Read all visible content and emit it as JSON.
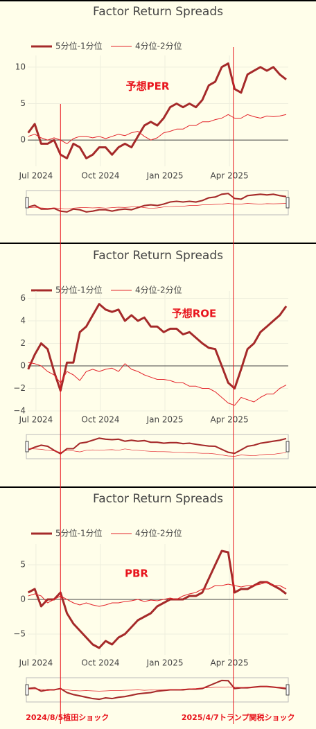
{
  "chart_data": [
    {
      "type": "line",
      "title": "Factor Return Spreads",
      "annotation": "予想PER",
      "x": [
        2024.47,
        2024.495,
        2024.52,
        2024.545,
        2024.57,
        2024.595,
        2024.62,
        2024.645,
        2024.67,
        2024.695,
        2024.72,
        2024.745,
        2024.77,
        2024.795,
        2024.82,
        2024.845,
        2024.87,
        2024.895,
        2024.92,
        2024.945,
        2024.97,
        2024.995,
        2025.02,
        2025.045,
        2025.07,
        2025.095,
        2025.12,
        2025.145,
        2025.17,
        2025.195,
        2025.22,
        2025.245,
        2025.27,
        2025.295,
        2025.32,
        2025.345,
        2025.37,
        2025.395,
        2025.42,
        2025.445,
        2025.47
      ],
      "series": [
        {
          "name": "5分位-1分位",
          "color": "#a52a2a",
          "values": [
            1,
            2.2,
            -0.5,
            -0.5,
            0,
            -2,
            -2.5,
            -0.5,
            -1,
            -2.5,
            -2,
            -1,
            -1,
            -2,
            -1,
            -0.5,
            -1,
            0.5,
            2,
            2.5,
            2,
            3,
            4.5,
            5,
            4.5,
            5,
            4.5,
            5.5,
            7.5,
            8,
            10,
            10.5,
            7,
            6.5,
            9,
            9.5,
            10,
            9.5,
            10,
            9,
            8.3
          ]
        },
        {
          "name": "4分位-2分位",
          "color": "#e3242b",
          "values": [
            0.5,
            0.8,
            0.3,
            0,
            0.3,
            0,
            -0.5,
            0.2,
            0.5,
            0.5,
            0.3,
            0.5,
            0.2,
            0.5,
            0.8,
            0.6,
            1,
            1.2,
            0.5,
            0,
            0.3,
            1,
            1.2,
            1.5,
            1.5,
            2,
            2,
            2.5,
            2.5,
            2.8,
            3,
            3.5,
            3,
            3,
            3.5,
            3.2,
            3,
            3.3,
            3.2,
            3.3,
            3.5
          ]
        }
      ],
      "xlim": [
        2024.468,
        2025.478
      ],
      "xticks": [
        {
          "value": 2024.5,
          "label": "Jul 2024"
        },
        {
          "value": 2024.75,
          "label": "Oct 2024"
        },
        {
          "value": 2025.0,
          "label": "Jan 2025"
        },
        {
          "value": 2025.25,
          "label": "Apr 2025"
        }
      ],
      "ylim": [
        -3.6,
        11.6
      ],
      "yticks": [
        0,
        5,
        10
      ],
      "grid": true
    },
    {
      "type": "line",
      "title": "Factor Return Spreads",
      "annotation": "予想ROE",
      "x": [
        2024.47,
        2024.495,
        2024.52,
        2024.545,
        2024.57,
        2024.595,
        2024.62,
        2024.645,
        2024.67,
        2024.695,
        2024.72,
        2024.745,
        2024.77,
        2024.795,
        2024.82,
        2024.845,
        2024.87,
        2024.895,
        2024.92,
        2024.945,
        2024.97,
        2024.995,
        2025.02,
        2025.045,
        2025.07,
        2025.095,
        2025.12,
        2025.145,
        2025.17,
        2025.195,
        2025.22,
        2025.245,
        2025.27,
        2025.295,
        2025.32,
        2025.345,
        2025.37,
        2025.395,
        2025.42,
        2025.445,
        2025.47
      ],
      "series": [
        {
          "name": "5分位-1分位",
          "color": "#a52a2a",
          "values": [
            -0.3,
            1,
            2,
            1.5,
            -0.5,
            -2.2,
            0.3,
            0.3,
            3,
            3.5,
            4.5,
            5.5,
            5,
            4.8,
            5,
            4,
            4.5,
            4,
            4.3,
            3.5,
            3.5,
            3,
            3.3,
            3.3,
            2.8,
            3,
            2.5,
            2,
            1.6,
            1.5,
            0,
            -1.5,
            -2,
            -0.3,
            1.5,
            2,
            3,
            3.5,
            4,
            4.5,
            5.3
          ]
        },
        {
          "name": "4分位-2分位",
          "color": "#e3242b",
          "values": [
            0.3,
            0.2,
            0,
            -0.5,
            -0.8,
            -1.5,
            -0.5,
            -0.8,
            -1.3,
            -0.5,
            -0.3,
            -0.5,
            -0.3,
            -0.2,
            -0.5,
            0.2,
            -0.3,
            -0.5,
            -0.8,
            -1,
            -1.2,
            -1.2,
            -1.3,
            -1.5,
            -1.5,
            -1.8,
            -1.8,
            -2,
            -2,
            -2.3,
            -2.8,
            -3.3,
            -3.5,
            -2.8,
            -3,
            -3.2,
            -2.8,
            -2.5,
            -2.5,
            -2,
            -1.7
          ]
        }
      ],
      "xlim": [
        2024.468,
        2025.478
      ],
      "xticks": [
        {
          "value": 2024.5,
          "label": "Jul 2024"
        },
        {
          "value": 2024.75,
          "label": "Oct 2024"
        },
        {
          "value": 2025.0,
          "label": "Jan 2025"
        },
        {
          "value": 2025.25,
          "label": "Apr 2025"
        }
      ],
      "ylim": [
        -4,
        6.65
      ],
      "yticks": [
        {
          "value": -4,
          "label": "−4"
        },
        {
          "value": -2,
          "label": "−2"
        },
        0,
        2,
        4,
        6
      ],
      "grid": true
    },
    {
      "type": "line",
      "title": "Factor Return Spreads",
      "annotation": "PBR",
      "x": [
        2024.47,
        2024.495,
        2024.52,
        2024.545,
        2024.57,
        2024.595,
        2024.62,
        2024.645,
        2024.67,
        2024.695,
        2024.72,
        2024.745,
        2024.77,
        2024.795,
        2024.82,
        2024.845,
        2024.87,
        2024.895,
        2024.92,
        2024.945,
        2024.97,
        2024.995,
        2025.02,
        2025.045,
        2025.07,
        2025.095,
        2025.12,
        2025.145,
        2025.17,
        2025.195,
        2025.22,
        2025.245,
        2025.27,
        2025.295,
        2025.32,
        2025.345,
        2025.37,
        2025.395,
        2025.42,
        2025.445,
        2025.47
      ],
      "series": [
        {
          "name": "5分位-1分位",
          "color": "#a52a2a",
          "values": [
            1,
            1.5,
            -1,
            0,
            0,
            1,
            -2,
            -3.5,
            -4.5,
            -5.5,
            -6.5,
            -7,
            -6,
            -6.5,
            -5.5,
            -5,
            -4,
            -3,
            -2.5,
            -2,
            -1,
            -0.5,
            0,
            0,
            0,
            0.5,
            0.5,
            1,
            3,
            5,
            7,
            6.8,
            1,
            1.5,
            1.5,
            2,
            2.5,
            2.5,
            2,
            1.5,
            0.8
          ]
        },
        {
          "name": "4分位-2分位",
          "color": "#e3242b",
          "values": [
            0.5,
            0.8,
            0.5,
            -0.5,
            0,
            0.5,
            0,
            -0.5,
            -0.8,
            -0.5,
            -0.8,
            -1,
            -0.8,
            -0.5,
            -0.5,
            -0.3,
            -0.2,
            0,
            -0.3,
            -0.1,
            -0.2,
            0,
            0.2,
            0,
            0.5,
            0.8,
            1,
            1.5,
            1.5,
            2,
            2,
            2.2,
            2,
            1.8,
            2,
            2,
            2.2,
            2.5,
            2,
            2,
            1.5
          ]
        }
      ],
      "xlim": [
        2024.468,
        2025.478
      ],
      "xticks": [
        {
          "value": 2024.5,
          "label": "Jul 2024"
        },
        {
          "value": 2024.75,
          "label": "Oct 2024"
        },
        {
          "value": 2025.0,
          "label": "Jan 2025"
        },
        {
          "value": 2025.25,
          "label": "Apr 2025"
        }
      ],
      "ylim": [
        -8,
        8
      ],
      "yticks": [
        {
          "value": -5,
          "label": "−5"
        },
        0,
        5
      ],
      "grid": true
    }
  ],
  "events": [
    {
      "x": 2024.595,
      "label": "2024/8/5植田ショック"
    },
    {
      "x": 2025.265,
      "label": "2025/4/7トランプ関税ショック"
    }
  ]
}
